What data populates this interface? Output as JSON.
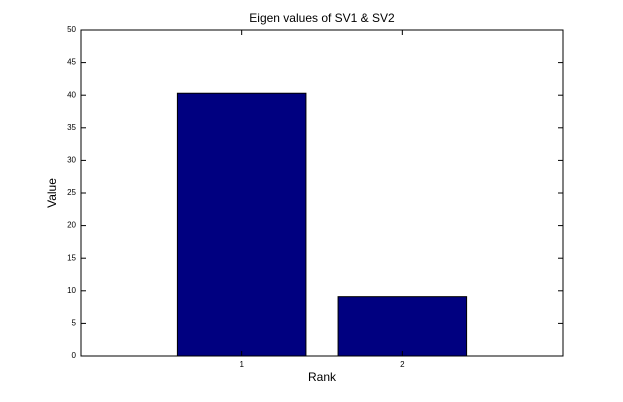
{
  "chart_data": {
    "type": "bar",
    "title": "Eigen values of SV1 & SV2",
    "xlabel": "Rank",
    "ylabel": "Value",
    "x": [
      1,
      2
    ],
    "values": [
      40.3,
      9.1
    ],
    "color": "#000080",
    "xlim": [
      0,
      3
    ],
    "xticks": [
      1,
      2
    ],
    "ylim": [
      0,
      50
    ],
    "yticks": [
      0,
      5,
      10,
      15,
      20,
      25,
      30,
      35,
      40,
      45,
      50
    ]
  }
}
